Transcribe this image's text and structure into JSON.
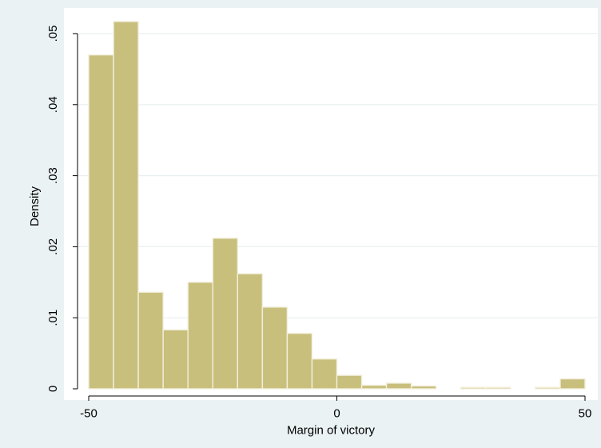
{
  "chart_data": {
    "type": "bar",
    "title": "",
    "xlabel": "Margin of victory",
    "ylabel": "Density",
    "xlim": [
      -50,
      50
    ],
    "ylim": [
      0,
      0.052
    ],
    "x_ticks": [
      -50,
      0,
      50
    ],
    "x_tick_labels": [
      "-50",
      "0",
      "50"
    ],
    "y_ticks": [
      0,
      0.01,
      0.02,
      0.03,
      0.04,
      0.05
    ],
    "y_tick_labels": [
      "0",
      ".01",
      ".02",
      ".03",
      ".04",
      ".05"
    ],
    "grid": true,
    "bin_width": 5,
    "bins": [
      {
        "start": -50,
        "end": -45,
        "value": 0.047
      },
      {
        "start": -45,
        "end": -40,
        "value": 0.0517
      },
      {
        "start": -40,
        "end": -35,
        "value": 0.0136
      },
      {
        "start": -35,
        "end": -30,
        "value": 0.0083
      },
      {
        "start": -30,
        "end": -25,
        "value": 0.015
      },
      {
        "start": -25,
        "end": -20,
        "value": 0.0212
      },
      {
        "start": -20,
        "end": -15,
        "value": 0.0162
      },
      {
        "start": -15,
        "end": -10,
        "value": 0.0115
      },
      {
        "start": -10,
        "end": -5,
        "value": 0.0078
      },
      {
        "start": -5,
        "end": 0,
        "value": 0.0042
      },
      {
        "start": 0,
        "end": 5,
        "value": 0.0019
      },
      {
        "start": 5,
        "end": 10,
        "value": 0.0005
      },
      {
        "start": 10,
        "end": 15,
        "value": 0.0008
      },
      {
        "start": 15,
        "end": 20,
        "value": 0.0004
      },
      {
        "start": 20,
        "end": 25,
        "value": 0.0
      },
      {
        "start": 25,
        "end": 30,
        "value": 0.0002
      },
      {
        "start": 30,
        "end": 35,
        "value": 0.0002
      },
      {
        "start": 35,
        "end": 40,
        "value": 0.0
      },
      {
        "start": 40,
        "end": 45,
        "value": 0.0002
      },
      {
        "start": 45,
        "end": 50,
        "value": 0.0014
      }
    ],
    "colors": {
      "bar_fill": "#c8bf7c",
      "bar_stroke": "#f2efdd",
      "outer_background": "#eaf2f3",
      "plot_background": "#ffffff",
      "grid": "#e9eff0",
      "axis": "#000000"
    }
  }
}
